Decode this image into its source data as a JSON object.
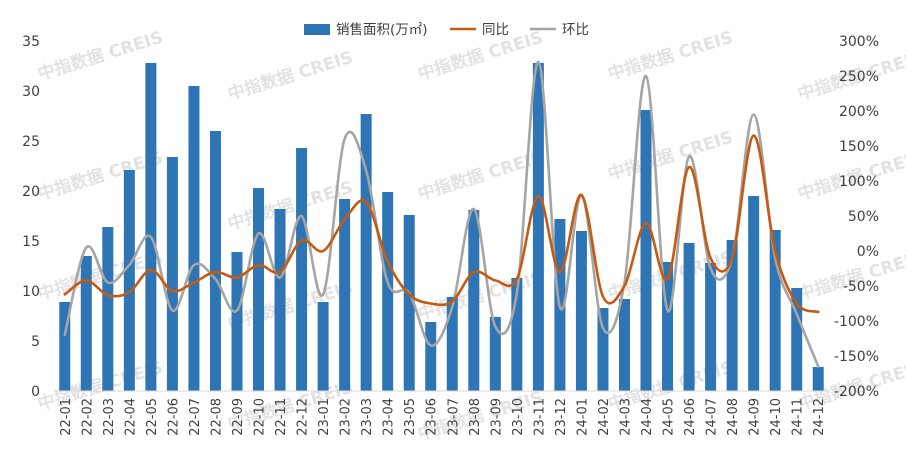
{
  "chart_data": {
    "type": "bar+line",
    "categories": [
      "22-01",
      "22-02",
      "22-03",
      "22-04",
      "22-05",
      "22-06",
      "22-07",
      "22-08",
      "22-09",
      "22-10",
      "22-11",
      "22-12",
      "23-01",
      "23-02",
      "23-03",
      "23-04",
      "23-05",
      "23-06",
      "23-07",
      "23-08",
      "23-09",
      "23-10",
      "23-11",
      "23-12",
      "24-01",
      "24-02",
      "24-03",
      "24-04",
      "24-05",
      "24-06",
      "24-07",
      "24-08",
      "24-09",
      "24-10",
      "24-11",
      "24-12"
    ],
    "bar_series": {
      "name": "销售面积(万㎡)",
      "color": "#2e75b6",
      "axis": "left",
      "values": [
        8.9,
        13.5,
        16.4,
        22.1,
        32.8,
        23.4,
        30.5,
        26.0,
        13.9,
        20.3,
        18.2,
        24.3,
        8.9,
        19.2,
        27.7,
        19.9,
        17.6,
        6.9,
        9.4,
        18.1,
        7.4,
        11.3,
        32.8,
        17.2,
        16.0,
        8.3,
        9.2,
        28.1,
        12.9,
        14.8,
        12.8,
        15.1,
        19.5,
        16.1,
        10.3,
        2.4
      ]
    },
    "line_series": [
      {
        "name": "同比",
        "color": "#c55a11",
        "axis": "right",
        "values": [
          -62,
          -42,
          -63,
          -59,
          -27,
          -57,
          -45,
          -30,
          -38,
          -20,
          -30,
          15,
          0,
          45,
          70,
          -15,
          -62,
          -75,
          -72,
          -30,
          -42,
          -40,
          78,
          -30,
          80,
          -65,
          -50,
          40,
          -40,
          120,
          -10,
          -10,
          165,
          0,
          -75,
          -87
        ]
      },
      {
        "name": "环比",
        "color": "#a5a5a5",
        "axis": "right",
        "values": [
          -120,
          5,
          -45,
          -20,
          20,
          -85,
          -20,
          -40,
          -85,
          25,
          -38,
          50,
          -62,
          160,
          115,
          -45,
          -60,
          -135,
          -80,
          60,
          -108,
          -60,
          270,
          -80,
          80,
          -110,
          -45,
          250,
          -85,
          135,
          -25,
          -10,
          195,
          -10,
          -90,
          -165
        ]
      }
    ],
    "left_axis": {
      "min": 0,
      "max": 35,
      "ticks": [
        "0",
        "5",
        "10",
        "15",
        "20",
        "25",
        "30",
        "35"
      ]
    },
    "right_axis": {
      "min": -200,
      "max": 300,
      "ticks": [
        "-200%",
        "-150%",
        "-100%",
        "-50%",
        "0%",
        "50%",
        "100%",
        "150%",
        "200%",
        "250%",
        "300%"
      ]
    },
    "legend_position": "top-center",
    "grid": false,
    "watermark": "中指数据 CREIS"
  }
}
